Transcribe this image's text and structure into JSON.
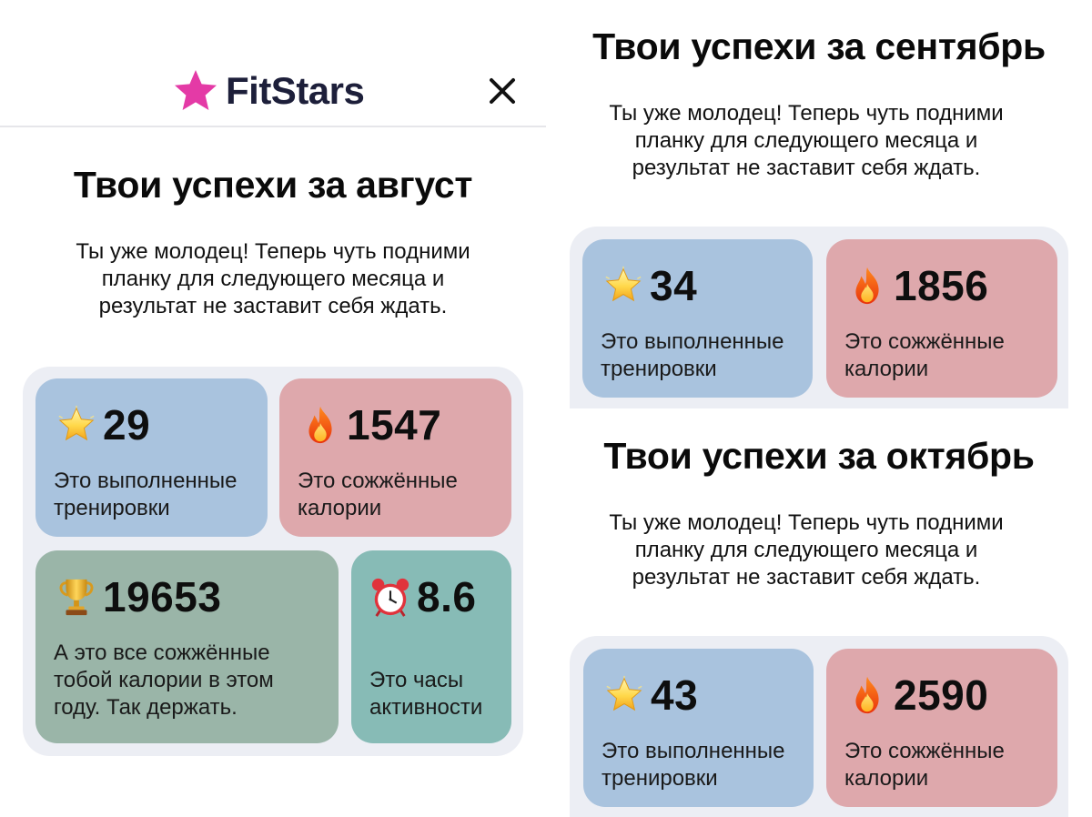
{
  "app": {
    "logo_text": "FitStars",
    "icons": {
      "logo": "star-icon",
      "close": "close-icon"
    },
    "colors": {
      "brand_star": "#e43aa6",
      "card_blue": "#a9c3de",
      "card_pink": "#dea8ac",
      "card_green": "#9ab5a8",
      "card_teal": "#87bbb6",
      "panel": "#eceef4"
    }
  },
  "august": {
    "title": "Твои успехи за август",
    "subtitle_lines": [
      "Ты уже молодец! Теперь чуть подними",
      "планку для следующего месяца и",
      "результат не заставит себя ждать."
    ],
    "cards": [
      {
        "icon": "star-icon",
        "value": "29",
        "caption_lines": [
          "Это выполненные",
          "тренировки"
        ]
      },
      {
        "icon": "fire-icon",
        "value": "1547",
        "caption_lines": [
          "Это сожжённые",
          "калории"
        ]
      },
      {
        "icon": "trophy-icon",
        "value": "19653",
        "caption_lines": [
          "А это все сожжённые",
          "тобой калории в этом",
          "году. Так держать."
        ]
      },
      {
        "icon": "alarm-clock-icon",
        "value": "8.6",
        "caption_lines": [
          "Это часы",
          "активности"
        ]
      }
    ]
  },
  "september": {
    "title": "Твои успехи за сентябрь",
    "subtitle_lines": [
      "Ты уже молодец! Теперь чуть подними",
      "планку для следующего месяца и",
      "результат не заставит себя ждать."
    ],
    "cards": [
      {
        "icon": "star-icon",
        "value": "34",
        "caption_lines": [
          "Это выполненные",
          "тренировки"
        ]
      },
      {
        "icon": "fire-icon",
        "value": "1856",
        "caption_lines": [
          "Это сожжённые",
          "калории"
        ]
      }
    ]
  },
  "october": {
    "title": "Твои успехи за октябрь",
    "subtitle_lines": [
      "Ты уже молодец! Теперь чуть подними",
      "планку для следующего месяца и",
      "результат не заставит себя ждать."
    ],
    "cards": [
      {
        "icon": "star-icon",
        "value": "43",
        "caption_lines": [
          "Это выполненные",
          "тренировки"
        ]
      },
      {
        "icon": "fire-icon",
        "value": "2590",
        "caption_lines": [
          "Это сожжённые",
          "калории"
        ]
      }
    ]
  }
}
